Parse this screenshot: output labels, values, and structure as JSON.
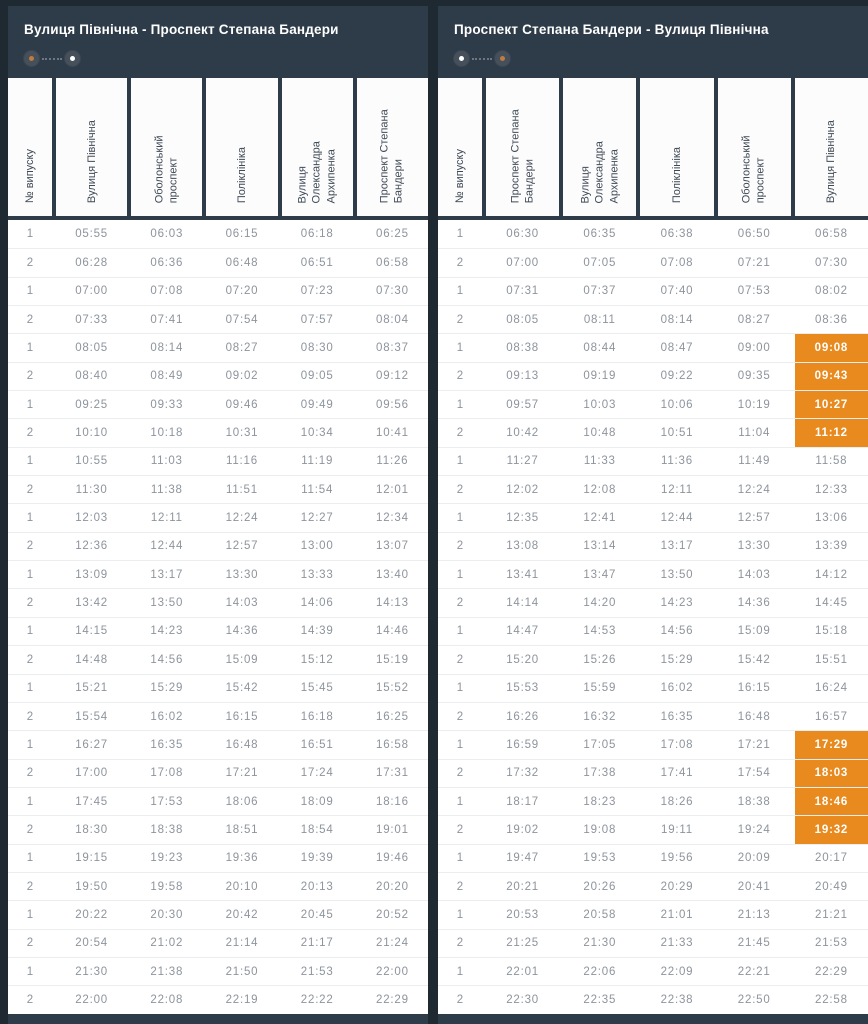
{
  "theme": {
    "panel_bg": "#2e3c49",
    "page_bg": "#1e2932",
    "highlight_orange": "#e88a1e",
    "time_text": "#8d949c",
    "header_text": "#414b56"
  },
  "panels": [
    {
      "title": "Вулиця Північна - Проспект Степана Бандери",
      "slider": {
        "left_dot": "#c07a42",
        "right_dot": "#ffffff"
      },
      "columns": [
        "№ випуску",
        "Вулиця Північна",
        "Оболонський\nпроспект",
        "Поліклініка",
        "Вулиця\nОлександра\nАрхипенка",
        "Проспект Степана\nБандери"
      ],
      "rows": [
        {
          "n": "1",
          "times": [
            "05:55",
            "06:03",
            "06:15",
            "06:18",
            "06:25"
          ]
        },
        {
          "n": "2",
          "times": [
            "06:28",
            "06:36",
            "06:48",
            "06:51",
            "06:58"
          ]
        },
        {
          "n": "1",
          "times": [
            "07:00",
            "07:08",
            "07:20",
            "07:23",
            "07:30"
          ]
        },
        {
          "n": "2",
          "times": [
            "07:33",
            "07:41",
            "07:54",
            "07:57",
            "08:04"
          ]
        },
        {
          "n": "1",
          "times": [
            "08:05",
            "08:14",
            "08:27",
            "08:30",
            "08:37"
          ]
        },
        {
          "n": "2",
          "times": [
            "08:40",
            "08:49",
            "09:02",
            "09:05",
            "09:12"
          ]
        },
        {
          "n": "1",
          "times": [
            "09:25",
            "09:33",
            "09:46",
            "09:49",
            "09:56"
          ]
        },
        {
          "n": "2",
          "times": [
            "10:10",
            "10:18",
            "10:31",
            "10:34",
            "10:41"
          ]
        },
        {
          "n": "1",
          "times": [
            "10:55",
            "11:03",
            "11:16",
            "11:19",
            "11:26"
          ]
        },
        {
          "n": "2",
          "times": [
            "11:30",
            "11:38",
            "11:51",
            "11:54",
            "12:01"
          ]
        },
        {
          "n": "1",
          "times": [
            "12:03",
            "12:11",
            "12:24",
            "12:27",
            "12:34"
          ]
        },
        {
          "n": "2",
          "times": [
            "12:36",
            "12:44",
            "12:57",
            "13:00",
            "13:07"
          ]
        },
        {
          "n": "1",
          "times": [
            "13:09",
            "13:17",
            "13:30",
            "13:33",
            "13:40"
          ]
        },
        {
          "n": "2",
          "times": [
            "13:42",
            "13:50",
            "14:03",
            "14:06",
            "14:13"
          ]
        },
        {
          "n": "1",
          "times": [
            "14:15",
            "14:23",
            "14:36",
            "14:39",
            "14:46"
          ]
        },
        {
          "n": "2",
          "times": [
            "14:48",
            "14:56",
            "15:09",
            "15:12",
            "15:19"
          ]
        },
        {
          "n": "1",
          "times": [
            "15:21",
            "15:29",
            "15:42",
            "15:45",
            "15:52"
          ]
        },
        {
          "n": "2",
          "times": [
            "15:54",
            "16:02",
            "16:15",
            "16:18",
            "16:25"
          ]
        },
        {
          "n": "1",
          "times": [
            "16:27",
            "16:35",
            "16:48",
            "16:51",
            "16:58"
          ]
        },
        {
          "n": "2",
          "times": [
            "17:00",
            "17:08",
            "17:21",
            "17:24",
            "17:31"
          ]
        },
        {
          "n": "1",
          "times": [
            "17:45",
            "17:53",
            "18:06",
            "18:09",
            "18:16"
          ]
        },
        {
          "n": "2",
          "times": [
            "18:30",
            "18:38",
            "18:51",
            "18:54",
            "19:01"
          ]
        },
        {
          "n": "1",
          "times": [
            "19:15",
            "19:23",
            "19:36",
            "19:39",
            "19:46"
          ]
        },
        {
          "n": "2",
          "times": [
            "19:50",
            "19:58",
            "20:10",
            "20:13",
            "20:20"
          ]
        },
        {
          "n": "1",
          "times": [
            "20:22",
            "20:30",
            "20:42",
            "20:45",
            "20:52"
          ]
        },
        {
          "n": "2",
          "times": [
            "20:54",
            "21:02",
            "21:14",
            "21:17",
            "21:24"
          ]
        },
        {
          "n": "1",
          "times": [
            "21:30",
            "21:38",
            "21:50",
            "21:53",
            "22:00"
          ]
        },
        {
          "n": "2",
          "times": [
            "22:00",
            "22:08",
            "22:19",
            "22:22",
            "22:29"
          ]
        }
      ]
    },
    {
      "title": "Проспект Степана Бандери - Вулиця Північна",
      "slider": {
        "left_dot": "#ffffff",
        "right_dot": "#c07a42"
      },
      "columns": [
        "№ випуску",
        "Проспект Степана\nБандери",
        "Вулиця\nОлександра\nАрхипенка",
        "Поліклініка",
        "Оболонський\nпроспект",
        "Вулиця Північна"
      ],
      "rows": [
        {
          "n": "1",
          "times": [
            "06:30",
            "06:35",
            "06:38",
            "06:50",
            "06:58"
          ]
        },
        {
          "n": "2",
          "times": [
            "07:00",
            "07:05",
            "07:08",
            "07:21",
            "07:30"
          ]
        },
        {
          "n": "1",
          "times": [
            "07:31",
            "07:37",
            "07:40",
            "07:53",
            "08:02"
          ]
        },
        {
          "n": "2",
          "times": [
            "08:05",
            "08:11",
            "08:14",
            "08:27",
            "08:36"
          ]
        },
        {
          "n": "1",
          "times": [
            "08:38",
            "08:44",
            "08:47",
            "09:00",
            "09:08"
          ],
          "hl": [
            4
          ]
        },
        {
          "n": "2",
          "times": [
            "09:13",
            "09:19",
            "09:22",
            "09:35",
            "09:43"
          ],
          "hl": [
            4
          ]
        },
        {
          "n": "1",
          "times": [
            "09:57",
            "10:03",
            "10:06",
            "10:19",
            "10:27"
          ],
          "hl": [
            4
          ]
        },
        {
          "n": "2",
          "times": [
            "10:42",
            "10:48",
            "10:51",
            "11:04",
            "11:12"
          ],
          "hl": [
            4
          ]
        },
        {
          "n": "1",
          "times": [
            "11:27",
            "11:33",
            "11:36",
            "11:49",
            "11:58"
          ]
        },
        {
          "n": "2",
          "times": [
            "12:02",
            "12:08",
            "12:11",
            "12:24",
            "12:33"
          ]
        },
        {
          "n": "1",
          "times": [
            "12:35",
            "12:41",
            "12:44",
            "12:57",
            "13:06"
          ]
        },
        {
          "n": "2",
          "times": [
            "13:08",
            "13:14",
            "13:17",
            "13:30",
            "13:39"
          ]
        },
        {
          "n": "1",
          "times": [
            "13:41",
            "13:47",
            "13:50",
            "14:03",
            "14:12"
          ]
        },
        {
          "n": "2",
          "times": [
            "14:14",
            "14:20",
            "14:23",
            "14:36",
            "14:45"
          ]
        },
        {
          "n": "1",
          "times": [
            "14:47",
            "14:53",
            "14:56",
            "15:09",
            "15:18"
          ]
        },
        {
          "n": "2",
          "times": [
            "15:20",
            "15:26",
            "15:29",
            "15:42",
            "15:51"
          ]
        },
        {
          "n": "1",
          "times": [
            "15:53",
            "15:59",
            "16:02",
            "16:15",
            "16:24"
          ]
        },
        {
          "n": "2",
          "times": [
            "16:26",
            "16:32",
            "16:35",
            "16:48",
            "16:57"
          ]
        },
        {
          "n": "1",
          "times": [
            "16:59",
            "17:05",
            "17:08",
            "17:21",
            "17:29"
          ],
          "hl": [
            4
          ]
        },
        {
          "n": "2",
          "times": [
            "17:32",
            "17:38",
            "17:41",
            "17:54",
            "18:03"
          ],
          "hl": [
            4
          ]
        },
        {
          "n": "1",
          "times": [
            "18:17",
            "18:23",
            "18:26",
            "18:38",
            "18:46"
          ],
          "hl": [
            4
          ]
        },
        {
          "n": "2",
          "times": [
            "19:02",
            "19:08",
            "19:11",
            "19:24",
            "19:32"
          ],
          "hl": [
            4
          ]
        },
        {
          "n": "1",
          "times": [
            "19:47",
            "19:53",
            "19:56",
            "20:09",
            "20:17"
          ]
        },
        {
          "n": "2",
          "times": [
            "20:21",
            "20:26",
            "20:29",
            "20:41",
            "20:49"
          ]
        },
        {
          "n": "1",
          "times": [
            "20:53",
            "20:58",
            "21:01",
            "21:13",
            "21:21"
          ]
        },
        {
          "n": "2",
          "times": [
            "21:25",
            "21:30",
            "21:33",
            "21:45",
            "21:53"
          ]
        },
        {
          "n": "1",
          "times": [
            "22:01",
            "22:06",
            "22:09",
            "22:21",
            "22:29"
          ]
        },
        {
          "n": "2",
          "times": [
            "22:30",
            "22:35",
            "22:38",
            "22:50",
            "22:58"
          ]
        }
      ]
    }
  ]
}
